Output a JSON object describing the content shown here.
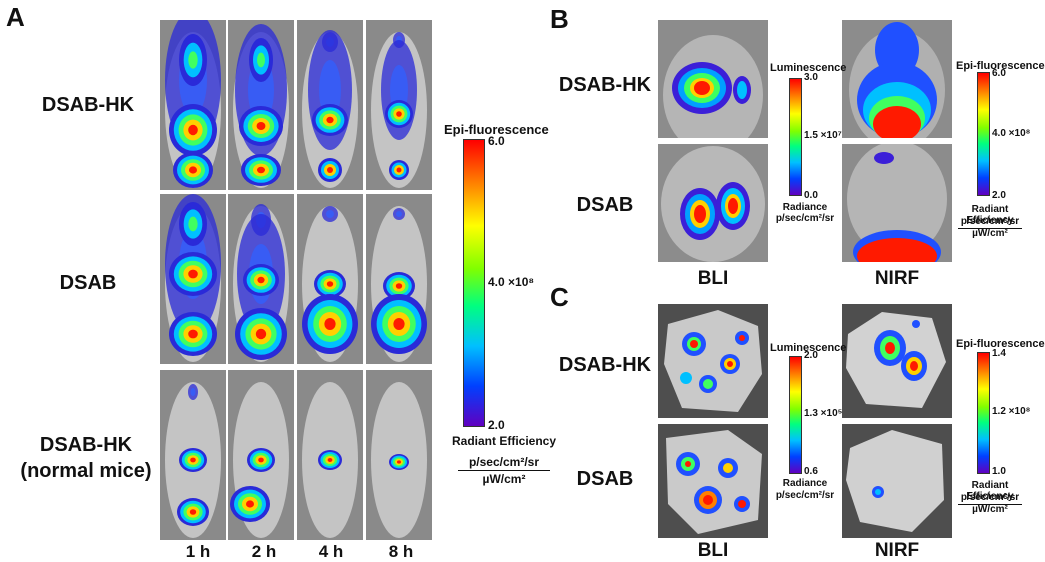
{
  "panels": {
    "A": {
      "letter": "A",
      "rows": [
        "DSAB-HK",
        "DSAB",
        "DSAB-HK\n(normal mice)"
      ],
      "times": [
        "1 h",
        "2 h",
        "4 h",
        "8 h"
      ],
      "scale": {
        "title": "Epi-fluorescence",
        "max": "6.0",
        "mid": "4.0 ×10⁸",
        "min": "2.0",
        "unit_title": "Radiant Efficiency",
        "unit_num": "p/sec/cm²/sr",
        "unit_den": "µW/cm²"
      }
    },
    "B": {
      "letter": "B",
      "rows": [
        "DSAB-HK",
        "DSAB"
      ],
      "columns": [
        "BLI",
        "NIRF"
      ],
      "bli_scale": {
        "title": "Luminescence",
        "max": "3.0",
        "mid": "1.5 ×10⁷",
        "min": "0.0",
        "unit_title": "Radiance",
        "unit": "p/sec/cm²/sr"
      },
      "nirf_scale": {
        "title": "Epi-fluorescence",
        "max": "6.0",
        "mid": "4.0 ×10⁸",
        "min": "2.0",
        "unit_title": "Radiant Efficiency",
        "unit_num": "p/sec/cm²/sr",
        "unit_den": "µW/cm²"
      }
    },
    "C": {
      "letter": "C",
      "rows": [
        "DSAB-HK",
        "DSAB"
      ],
      "columns": [
        "BLI",
        "NIRF"
      ],
      "bli_scale": {
        "title": "Luminescence",
        "max": "2.0",
        "mid": "1.3 ×10⁵",
        "min": "0.6",
        "unit_title": "Radiance",
        "unit": "p/sec/cm²/sr"
      },
      "nirf_scale": {
        "title": "Epi-fluorescence",
        "max": "1.4",
        "mid": "1.2 ×10⁸",
        "min": "1.0",
        "unit_title": "Radiant Efficiency",
        "unit_num": "p/sec/cm²/sr",
        "unit_den": "µW/cm²"
      }
    }
  }
}
